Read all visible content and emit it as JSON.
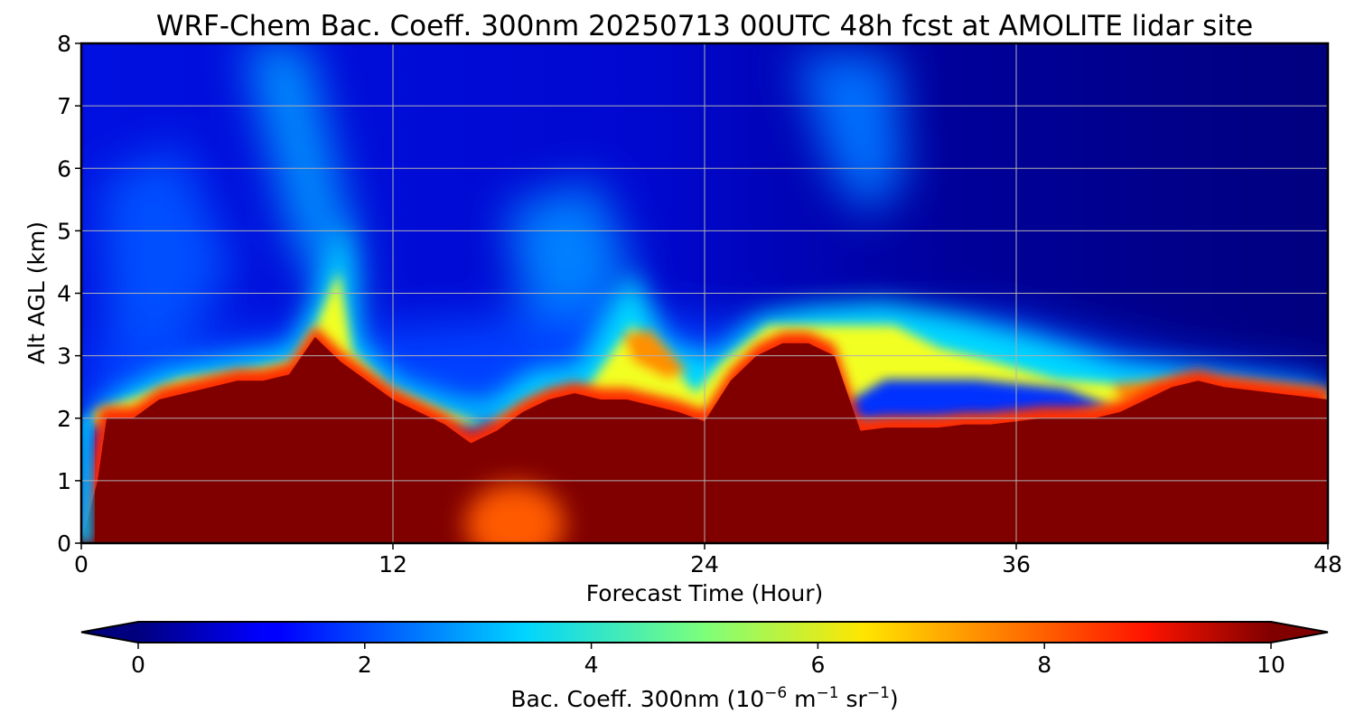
{
  "chart_data": {
    "type": "heatmap",
    "title": "WRF-Chem Bac. Coeff. 300nm  20250713 00UTC 48h fcst at AMOLITE lidar site",
    "xlabel": "Forecast Time (Hour)",
    "ylabel": "Alt AGL (km)",
    "xlim": [
      0,
      48
    ],
    "ylim": [
      0,
      8
    ],
    "x_ticks": [
      0,
      12,
      24,
      36,
      48
    ],
    "y_ticks": [
      0,
      1,
      2,
      3,
      4,
      5,
      6,
      7,
      8
    ],
    "grid": true,
    "colormap": "jet",
    "colorbar": {
      "label": "Bac. Coeff. 300nm  (10",
      "label_exp1": "−6",
      "label_mid": " m",
      "label_exp2": "−1",
      "label_mid2": " sr",
      "label_exp3": "−1",
      "label_end": ")",
      "range": [
        0,
        10
      ],
      "ticks": [
        0,
        2,
        4,
        6,
        8,
        10
      ],
      "extend": "both",
      "orientation": "horizontal",
      "position": "bottom"
    },
    "layers": [
      {
        "name": "boundary_layer_top",
        "x": [
          0,
          1,
          2,
          3,
          4,
          5,
          6,
          7,
          8,
          9,
          10,
          11,
          12,
          13,
          14,
          15,
          16,
          17,
          18,
          19,
          20,
          21,
          22,
          23,
          24,
          25,
          26,
          27,
          28,
          29,
          30,
          31,
          32,
          33,
          34,
          35,
          36,
          37,
          38,
          39,
          40,
          41,
          42,
          43,
          44,
          45,
          46,
          47,
          48
        ],
        "y": [
          0.0,
          2.0,
          2.0,
          2.3,
          2.4,
          2.5,
          2.6,
          2.6,
          2.7,
          3.3,
          2.9,
          2.6,
          2.3,
          2.1,
          1.9,
          1.6,
          1.8,
          2.1,
          2.3,
          2.4,
          2.3,
          2.3,
          2.2,
          2.1,
          1.95,
          2.6,
          3.0,
          3.2,
          3.2,
          3.0,
          1.8,
          1.85,
          1.85,
          1.85,
          1.9,
          1.9,
          1.95,
          2.0,
          2.0,
          2.0,
          2.1,
          2.3,
          2.5,
          2.6,
          2.5,
          2.45,
          2.4,
          2.35,
          2.3
        ]
      }
    ]
  }
}
